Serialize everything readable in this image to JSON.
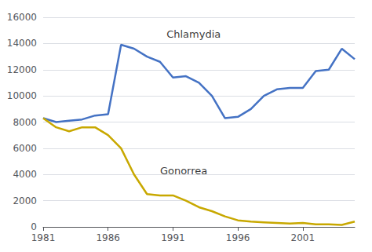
{
  "chart_data": {
    "type": "line",
    "x": [
      1981,
      1982,
      1983,
      1984,
      1985,
      1986,
      1987,
      1988,
      1989,
      1990,
      1991,
      1992,
      1993,
      1994,
      1995,
      1996,
      1997,
      1998,
      1999,
      2000,
      2001,
      2002,
      2003,
      2004,
      2005
    ],
    "series": [
      {
        "name": "Chlamydia",
        "color": "#4472C4",
        "values": [
          8300,
          8000,
          8100,
          8200,
          8500,
          8600,
          13900,
          13600,
          13000,
          12600,
          11400,
          11500,
          11000,
          10000,
          8300,
          8400,
          9000,
          10000,
          10500,
          10600,
          10600,
          11900,
          12000,
          13600,
          12800
        ]
      },
      {
        "name": "Gonorrea",
        "color": "#C8A800",
        "values": [
          8300,
          7600,
          7300,
          7600,
          7600,
          7000,
          6000,
          4000,
          2500,
          2400,
          2400,
          2000,
          1500,
          1200,
          800,
          500,
          400,
          350,
          300,
          250,
          300,
          200,
          200,
          150,
          400
        ]
      }
    ],
    "annotations": [
      {
        "text": "Chlamydia",
        "x": 1990.5,
        "y": 14300
      },
      {
        "text": "Gonorrea",
        "x": 1990.0,
        "y": 3900
      }
    ],
    "xlim": [
      1981,
      2005
    ],
    "xticks": [
      1981,
      1986,
      1991,
      1996,
      2001
    ],
    "ylim": [
      0,
      16000
    ],
    "yticks": [
      0,
      2000,
      4000,
      6000,
      8000,
      10000,
      12000,
      14000,
      16000
    ],
    "grid": true
  }
}
